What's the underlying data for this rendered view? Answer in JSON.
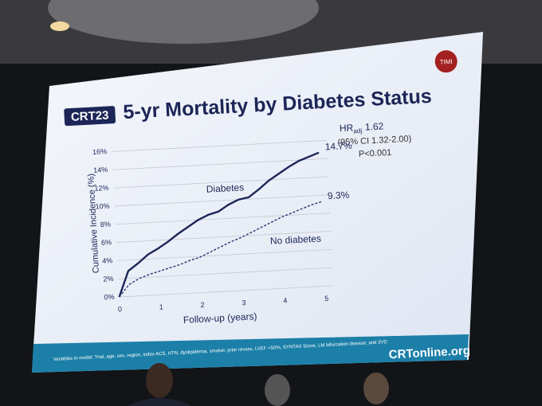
{
  "chart_data": {
    "type": "line",
    "title": "5-yr Mortality by Diabetes Status",
    "logo": "CRT23",
    "badge": "TIMI",
    "x_label": "Follow-up (years)",
    "y_label": "Cumulative Incidence (%)",
    "x": [
      0,
      0.25,
      0.5,
      0.75,
      1,
      1.25,
      1.5,
      1.75,
      2,
      2.25,
      2.5,
      2.75,
      3,
      3.25,
      3.5,
      3.75,
      4,
      4.25,
      4.5,
      4.75,
      5
    ],
    "series": [
      {
        "name": "Diabetes",
        "color": "#1c2557",
        "dashed": false,
        "values": [
          0,
          2.8,
          3.6,
          4.5,
          5.1,
          5.8,
          6.6,
          7.3,
          8,
          8.5,
          8.8,
          9.5,
          10,
          10.2,
          11,
          11.9,
          12.6,
          13.3,
          13.9,
          14.3,
          14.7
        ]
      },
      {
        "name": "No diabetes",
        "color": "#2a3570",
        "dashed": true,
        "values": [
          0,
          1.3,
          1.9,
          2.3,
          2.6,
          2.9,
          3.2,
          3.6,
          3.9,
          4.4,
          4.9,
          5.4,
          5.8,
          6.3,
          6.8,
          7.3,
          7.8,
          8.2,
          8.6,
          9,
          9.3
        ]
      }
    ],
    "end_labels": [
      "14.7%",
      "9.3%"
    ],
    "xlim": [
      0,
      5.2
    ],
    "xticks": [
      0,
      1,
      2,
      3,
      4,
      5
    ],
    "ylim": [
      0,
      16.8
    ],
    "yticks": [
      {
        "value": 0,
        "label": "0%"
      },
      {
        "value": 2,
        "label": "2%"
      },
      {
        "value": 4,
        "label": "4%"
      },
      {
        "value": 6,
        "label": "6%"
      },
      {
        "value": 8,
        "label": "8%"
      },
      {
        "value": 10,
        "label": "10%"
      },
      {
        "value": 12,
        "label": "12%"
      },
      {
        "value": 14,
        "label": "14%"
      },
      {
        "value": 16,
        "label": "16%"
      }
    ],
    "grid": true,
    "hr": {
      "label": "HR",
      "subscript": "adj",
      "value": "1.62",
      "ci": "(95% CI 1.32-2.00)",
      "p": "P<0.001"
    },
    "footnote": "Variables in model: Trial, age, sex, region, index ACS, HTN, dyslipidemia, smoker, prior revasc, LVEF <50%, SYNTAX Score, LM bifurcation disease, and 3VD",
    "website": "CRTonline.org"
  }
}
